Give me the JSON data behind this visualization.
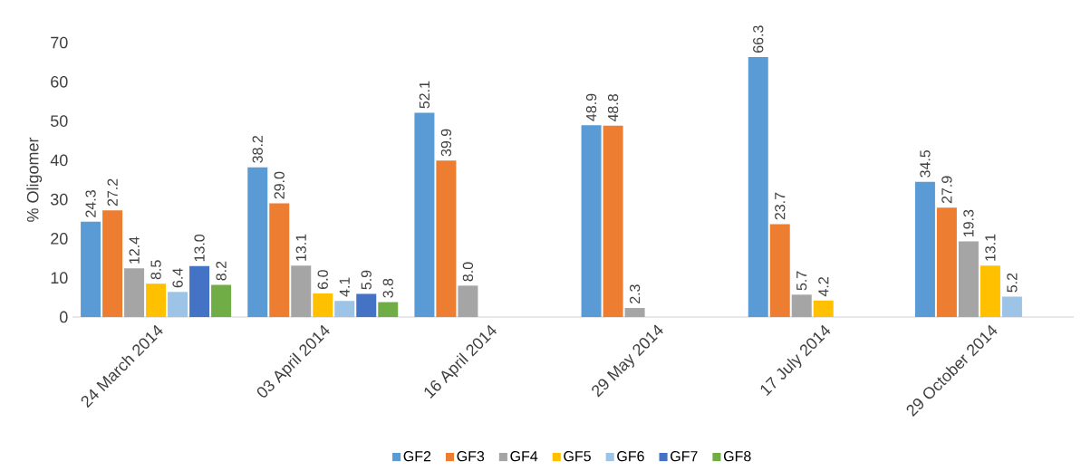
{
  "chart_data": {
    "type": "bar",
    "ylabel": "% Oligomer",
    "categories": [
      "24 March 2014",
      "03 April 2014",
      "16 April 2014",
      "29 May 2014",
      "17 July 2014",
      "29 October 2014"
    ],
    "series": [
      {
        "name": "GF2",
        "color": "#5b9bd5",
        "values": [
          24.3,
          38.2,
          52.1,
          48.9,
          66.3,
          34.5
        ],
        "value_labels": [
          "24.3",
          "38.2",
          "52.1",
          "48.9",
          "66.3",
          "34.5"
        ]
      },
      {
        "name": "GF3",
        "color": "#ed7d31",
        "values": [
          27.2,
          29.0,
          39.9,
          48.8,
          23.7,
          27.9
        ],
        "value_labels": [
          "27.2",
          "29.0",
          "39.9",
          "48.8",
          "23.7",
          "27.9"
        ]
      },
      {
        "name": "GF4",
        "color": "#a5a5a5",
        "values": [
          12.4,
          13.1,
          8.0,
          2.3,
          5.7,
          19.3
        ],
        "value_labels": [
          "12.4",
          "13.1",
          "8.0",
          "2.3",
          "5.7",
          "19.3"
        ]
      },
      {
        "name": "GF5",
        "color": "#ffc000",
        "values": [
          8.5,
          6.0,
          null,
          null,
          4.2,
          13.1
        ],
        "value_labels": [
          "8.5",
          "6.0",
          null,
          null,
          "4.2",
          "13.1"
        ]
      },
      {
        "name": "GF6",
        "color": "#9dc3e6",
        "values": [
          6.4,
          4.1,
          null,
          null,
          null,
          5.2
        ],
        "value_labels": [
          "6.4",
          "4.1",
          null,
          null,
          null,
          "5.2"
        ]
      },
      {
        "name": "GF7",
        "color": "#4472c4",
        "values": [
          13.0,
          5.9,
          null,
          null,
          null,
          null
        ],
        "value_labels": [
          "13.0",
          "5.9",
          null,
          null,
          null,
          null
        ]
      },
      {
        "name": "GF8",
        "color": "#70ad47",
        "values": [
          8.2,
          3.8,
          null,
          null,
          null,
          null
        ],
        "value_labels": [
          "8.2",
          "3.8",
          null,
          null,
          null,
          null
        ]
      }
    ],
    "ylim": [
      0,
      70
    ],
    "yticks": [
      0,
      10,
      20,
      30,
      40,
      50,
      60,
      70
    ],
    "legend": "bottom"
  }
}
